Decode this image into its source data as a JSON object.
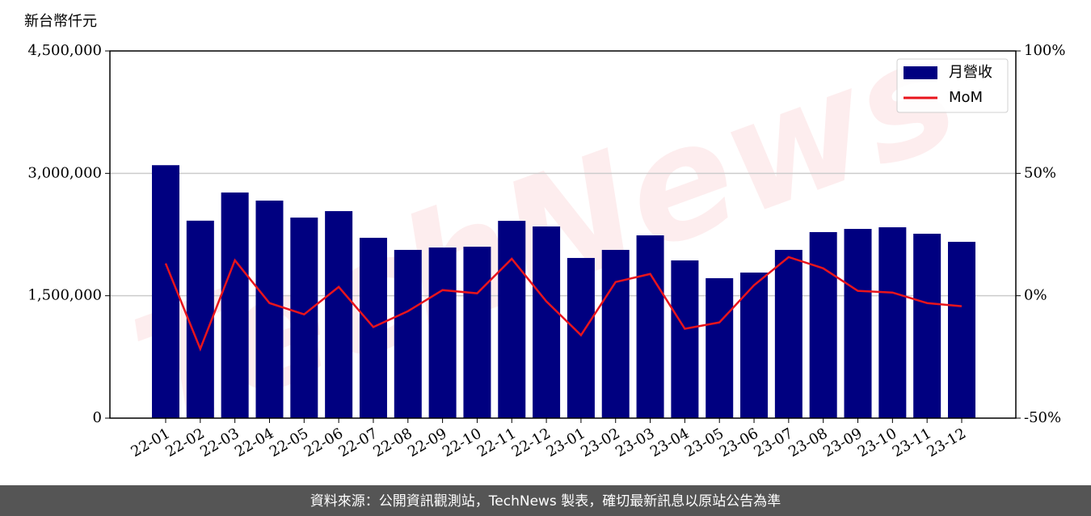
{
  "chart_data": {
    "type": "bar",
    "y_label": "新台幣仟元",
    "categories": [
      "22-01",
      "22-02",
      "22-03",
      "22-04",
      "22-05",
      "22-06",
      "22-07",
      "22-08",
      "22-09",
      "22-10",
      "22-11",
      "22-12",
      "23-01",
      "23-02",
      "23-03",
      "23-04",
      "23-05",
      "23-06",
      "23-07",
      "23-08",
      "23-09",
      "23-10",
      "23-11",
      "23-12"
    ],
    "series": [
      {
        "name": "月營收",
        "type": "bar",
        "color": "#000080",
        "values": [
          3100000,
          2420000,
          2765000,
          2666000,
          2458000,
          2537000,
          2210000,
          2062000,
          2091000,
          2101000,
          2418000,
          2349000,
          1963000,
          2062000,
          2240000,
          1933000,
          1715000,
          1784000,
          2062000,
          2280000,
          2319000,
          2339000,
          2260000,
          2161000
        ]
      },
      {
        "name": "MoM",
        "type": "line",
        "axis": "y2",
        "color": "#e8141c",
        "values": [
          13.2,
          -21.7,
          14.5,
          -3.0,
          -7.6,
          3.6,
          -12.8,
          -6.3,
          2.3,
          1.0,
          15.1,
          -2.3,
          -16.1,
          5.6,
          8.9,
          -13.5,
          -10.9,
          4.3,
          15.8,
          11.2,
          2.0,
          1.3,
          -3.0,
          -4.3
        ]
      }
    ],
    "ylim": [
      0,
      4500000
    ],
    "yticks": [
      0,
      {
        "value": 1500000,
        "label": "1,500,000"
      },
      {
        "value": 3000000,
        "label": "3,000,000"
      },
      {
        "value": 4500000,
        "label": "4,500,000"
      }
    ],
    "y2lim": [
      -50,
      100
    ],
    "y2ticks": [
      {
        "value": -50,
        "label": "-50%"
      },
      {
        "value": 0,
        "label": "0%"
      },
      {
        "value": 50,
        "label": "50%"
      },
      {
        "value": 100,
        "label": "100%"
      }
    ],
    "grid": true,
    "legend": "upper right",
    "watermark": "TechNews",
    "footer": "資料來源：公開資訊觀測站，TechNews 製表，確切最新訊息以原站公告為準"
  }
}
